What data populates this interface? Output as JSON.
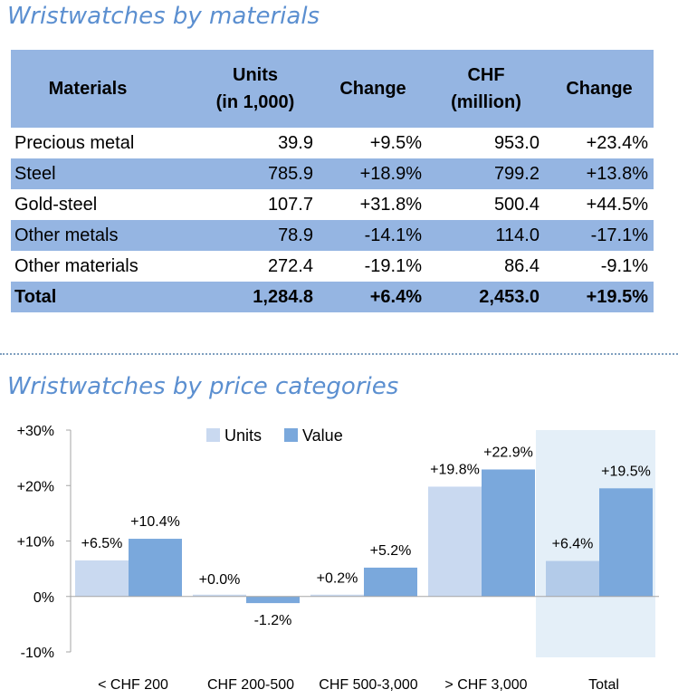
{
  "titles": {
    "materials": "Wristwatches by materials",
    "price": "Wristwatches by price categories"
  },
  "table": {
    "headers": [
      "Materials",
      "Units\n(in 1,000)",
      "Change",
      "CHF\n(million)",
      "Change"
    ],
    "rows": [
      [
        "Precious metal",
        "39.9",
        "+9.5%",
        "953.0",
        "+23.4%"
      ],
      [
        "Steel",
        "785.9",
        "+18.9%",
        "799.2",
        "+13.8%"
      ],
      [
        "Gold-steel",
        "107.7",
        "+31.8%",
        "500.4",
        "+44.5%"
      ],
      [
        "Other metals",
        "78.9",
        "-14.1%",
        "114.0",
        "-17.1%"
      ],
      [
        "Other materials",
        "272.4",
        "-19.1%",
        "86.4",
        "-9.1%"
      ]
    ],
    "total": [
      "Total",
      "1,284.8",
      "+6.4%",
      "2,453.0",
      "+19.5%"
    ]
  },
  "chart_data": {
    "type": "bar",
    "categories": [
      "< CHF 200",
      "CHF 200-500",
      "CHF 500-3,000",
      "> CHF 3,000",
      "Total"
    ],
    "series": [
      {
        "name": "Units",
        "values": [
          6.5,
          0.0,
          0.2,
          19.8,
          6.4
        ],
        "labels": [
          "+6.5%",
          "+0.0%",
          "+0.2%",
          "+19.8%",
          "+6.4%"
        ],
        "color": "#c9d9f0",
        "total_color": "#b3cbe9"
      },
      {
        "name": "Value",
        "values": [
          10.4,
          -1.2,
          5.2,
          22.9,
          19.5
        ],
        "labels": [
          "+10.4%",
          "-1.2%",
          "+5.2%",
          "+22.9%",
          "+19.5%"
        ],
        "color": "#7aa8dc"
      }
    ],
    "y_ticks": [
      30,
      20,
      10,
      0,
      -10
    ],
    "y_tick_labels": [
      "+30%",
      "+20%",
      "+10%",
      "0%",
      "-10%"
    ],
    "ylim": [
      -10,
      30
    ],
    "legend": "top-center",
    "highlight_category": "Total",
    "highlight_color": "#e4eff8",
    "xlabel": "",
    "ylabel": ""
  }
}
